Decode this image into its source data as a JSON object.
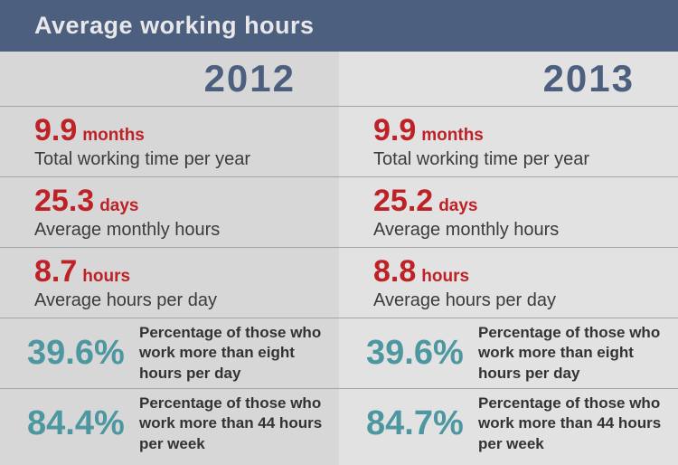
{
  "header": {
    "title": "Average working hours"
  },
  "columns": [
    {
      "year": "2012",
      "rows": [
        {
          "value": "9.9",
          "unit": "months",
          "label": "Total working time per year"
        },
        {
          "value": "25.3",
          "unit": "days",
          "label": "Average monthly hours"
        },
        {
          "value": "8.7",
          "unit": "hours",
          "label": "Average hours per day"
        },
        {
          "value": "39.6%",
          "label": "Percentage of those who work more than eight hours per day"
        },
        {
          "value": "84.4%",
          "label": "Percentage of those who work more than 44 hours per week"
        }
      ]
    },
    {
      "year": "2013",
      "rows": [
        {
          "value": "9.9",
          "unit": "months",
          "label": "Total working time per year"
        },
        {
          "value": "25.2",
          "unit": "days",
          "label": "Average monthly hours"
        },
        {
          "value": "8.8",
          "unit": "hours",
          "label": "Average hours per day"
        },
        {
          "value": "39.6%",
          "label": "Percentage of those who work more than eight hours per day"
        },
        {
          "value": "84.7%",
          "label": "Percentage of those who work more than 44 hours per week"
        }
      ]
    }
  ],
  "colors": {
    "header_bg": "#4c5f7e",
    "header_text": "#e8e7e9",
    "year_text": "#4c5f7e",
    "stat_accent_red": "#be2126",
    "percent_accent_teal": "#4d97a1",
    "label_text": "#3b3b3b",
    "col_left_bg": "#d7d7d7",
    "col_right_bg": "#e2e2e2",
    "divider": "#a4a4a4"
  },
  "chart_data": {
    "type": "table",
    "title": "Average working hours",
    "categories": [
      "2012",
      "2013"
    ],
    "series": [
      {
        "name": "Total working time per year (months)",
        "values": [
          9.9,
          9.9
        ]
      },
      {
        "name": "Average monthly hours (days)",
        "values": [
          25.3,
          25.2
        ]
      },
      {
        "name": "Average hours per day (hours)",
        "values": [
          8.7,
          8.8
        ]
      },
      {
        "name": "Percentage of those who work more than eight hours per day (%)",
        "values": [
          39.6,
          39.6
        ]
      },
      {
        "name": "Percentage of those who work more than 44 hours per week (%)",
        "values": [
          84.4,
          84.7
        ]
      }
    ]
  }
}
